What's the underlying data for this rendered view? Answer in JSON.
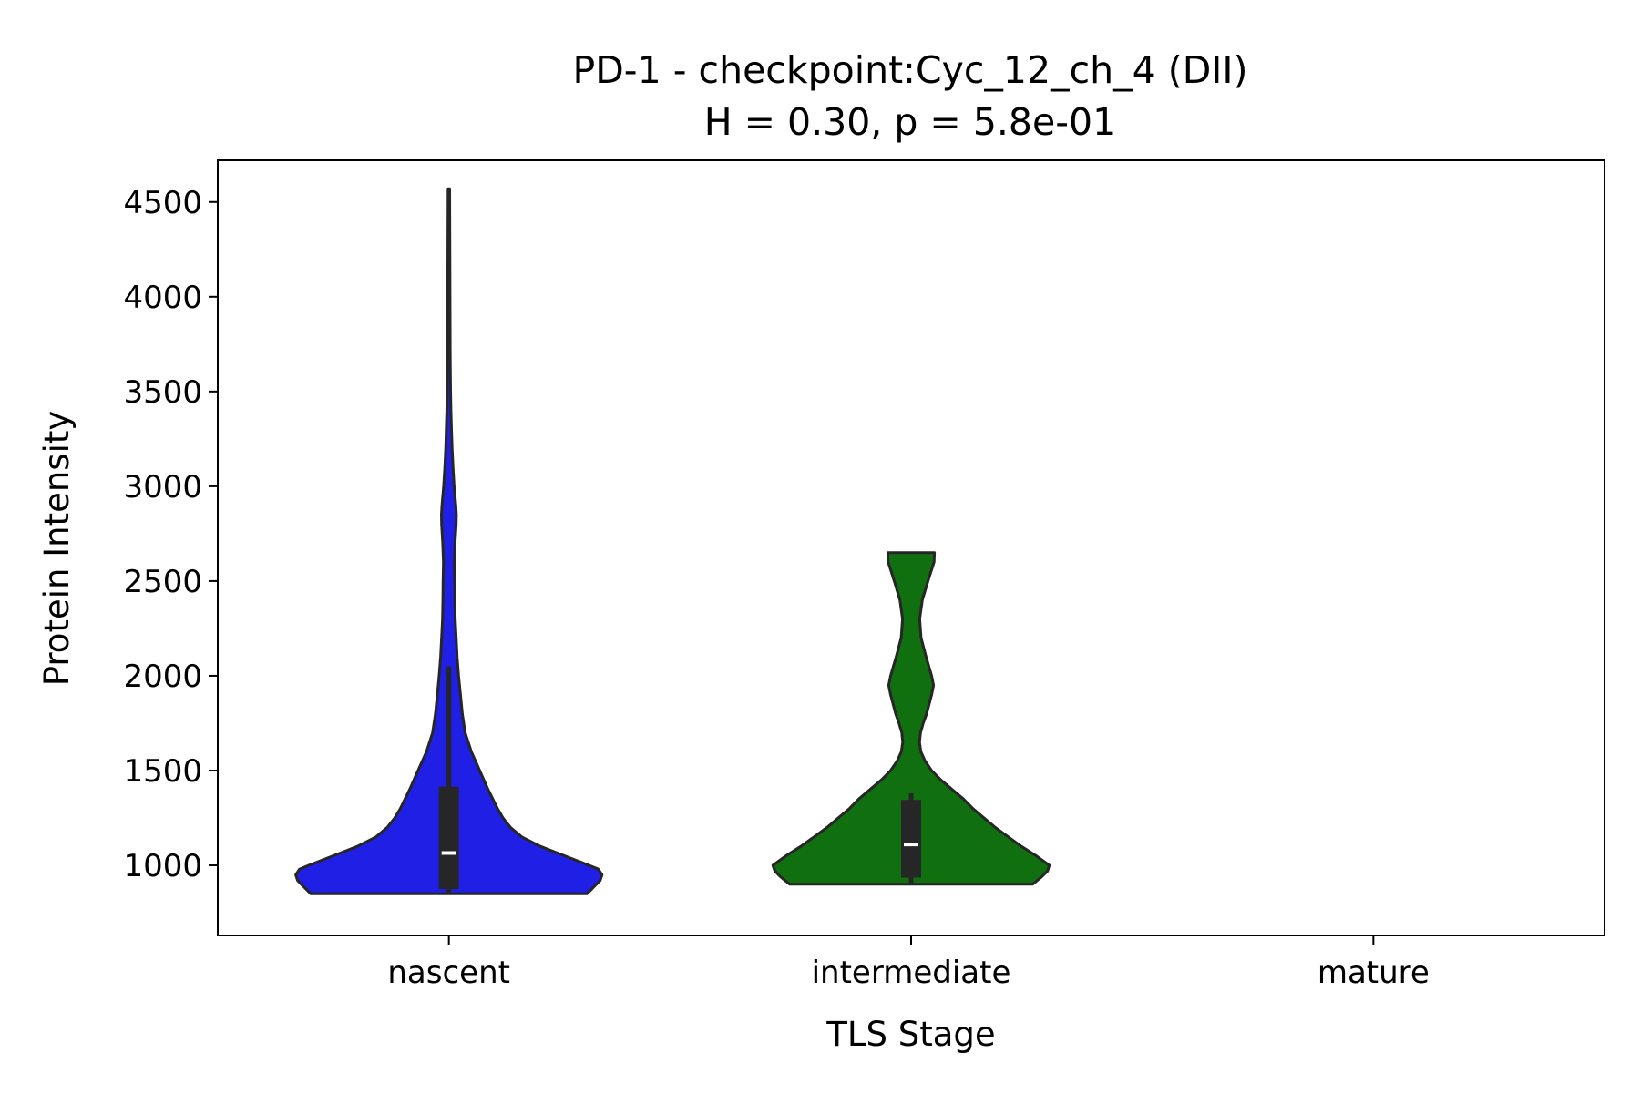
{
  "chart_data": {
    "type": "violin",
    "title": "PD-1 - checkpoint:Cyc_12_ch_4 (DII)",
    "subtitle": "H = 0.30, p = 5.8e-01",
    "xlabel": "TLS Stage",
    "ylabel": "Protein Intensity",
    "categories": [
      "nascent",
      "intermediate",
      "mature"
    ],
    "ylim": [
      630,
      4720
    ],
    "yticks": [
      1000,
      1500,
      2000,
      2500,
      3000,
      3500,
      4000,
      4500
    ],
    "grid": false,
    "legend": "none",
    "series": [
      {
        "category": "nascent",
        "color": "#1f1fe6",
        "min": 850,
        "max": 4570,
        "quartiles": [
          875,
          1065,
          1415
        ],
        "whisker_high": 2050,
        "density_profile": [
          [
            850,
            0.74
          ],
          [
            880,
            0.77
          ],
          [
            920,
            0.81
          ],
          [
            950,
            0.82
          ],
          [
            980,
            0.8
          ],
          [
            1000,
            0.75
          ],
          [
            1050,
            0.62
          ],
          [
            1100,
            0.49
          ],
          [
            1150,
            0.39
          ],
          [
            1200,
            0.33
          ],
          [
            1250,
            0.29
          ],
          [
            1300,
            0.26
          ],
          [
            1400,
            0.21
          ],
          [
            1500,
            0.165
          ],
          [
            1600,
            0.12
          ],
          [
            1700,
            0.087
          ],
          [
            1800,
            0.072
          ],
          [
            1900,
            0.062
          ],
          [
            2000,
            0.052
          ],
          [
            2100,
            0.044
          ],
          [
            2200,
            0.039
          ],
          [
            2300,
            0.034
          ],
          [
            2400,
            0.032
          ],
          [
            2500,
            0.031
          ],
          [
            2600,
            0.029
          ],
          [
            2700,
            0.033
          ],
          [
            2800,
            0.039
          ],
          [
            2850,
            0.04
          ],
          [
            2900,
            0.037
          ],
          [
            3000,
            0.028
          ],
          [
            3100,
            0.022
          ],
          [
            3200,
            0.017
          ],
          [
            3300,
            0.014
          ],
          [
            3400,
            0.011
          ],
          [
            3500,
            0.009
          ],
          [
            3700,
            0.007
          ],
          [
            4000,
            0.006
          ],
          [
            4300,
            0.005
          ],
          [
            4570,
            0.004
          ]
        ]
      },
      {
        "category": "intermediate",
        "color": "#107010",
        "min": 900,
        "max": 2650,
        "quartiles": [
          935,
          1110,
          1345
        ],
        "whisker_high": 1380,
        "density_profile": [
          [
            900,
            0.65
          ],
          [
            940,
            0.7
          ],
          [
            970,
            0.73
          ],
          [
            1000,
            0.74
          ],
          [
            1050,
            0.67
          ],
          [
            1100,
            0.59
          ],
          [
            1150,
            0.52
          ],
          [
            1200,
            0.45
          ],
          [
            1250,
            0.39
          ],
          [
            1300,
            0.33
          ],
          [
            1350,
            0.28
          ],
          [
            1400,
            0.22
          ],
          [
            1450,
            0.16
          ],
          [
            1500,
            0.11
          ],
          [
            1550,
            0.075
          ],
          [
            1600,
            0.052
          ],
          [
            1650,
            0.045
          ],
          [
            1700,
            0.05
          ],
          [
            1750,
            0.065
          ],
          [
            1800,
            0.083
          ],
          [
            1900,
            0.11
          ],
          [
            1950,
            0.12
          ],
          [
            2000,
            0.11
          ],
          [
            2100,
            0.08
          ],
          [
            2200,
            0.053
          ],
          [
            2300,
            0.046
          ],
          [
            2400,
            0.06
          ],
          [
            2500,
            0.09
          ],
          [
            2600,
            0.123
          ],
          [
            2650,
            0.125
          ]
        ]
      }
    ]
  }
}
